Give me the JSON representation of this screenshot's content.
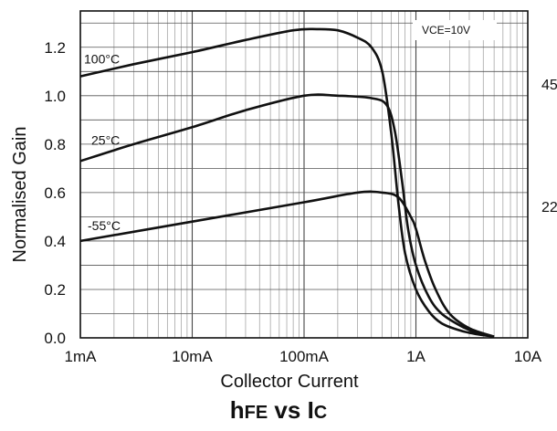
{
  "chart_data": {
    "type": "line",
    "title_main": "h",
    "title_sub": "FE",
    "title_mid": " vs I",
    "title_sub2": "C",
    "xlabel": "Collector Current",
    "ylabel": "Normalised Gain",
    "x_scale": "log",
    "xlim": [
      0.001,
      10
    ],
    "ylim": [
      0.0,
      1.35
    ],
    "x_ticks": [
      {
        "value": 0.001,
        "label": "1mA"
      },
      {
        "value": 0.01,
        "label": "10mA"
      },
      {
        "value": 0.1,
        "label": "100mA"
      },
      {
        "value": 1,
        "label": "1A"
      },
      {
        "value": 10,
        "label": "10A"
      }
    ],
    "y_ticks": [
      {
        "value": 0.0,
        "label": "0.0"
      },
      {
        "value": 0.2,
        "label": "0.2"
      },
      {
        "value": 0.4,
        "label": "0.4"
      },
      {
        "value": 0.6,
        "label": "0.6"
      },
      {
        "value": 0.8,
        "label": "0.8"
      },
      {
        "value": 1.0,
        "label": "1.0"
      },
      {
        "value": 1.2,
        "label": "1.2"
      }
    ],
    "grid": true,
    "condition": "VCE=10V",
    "margin_labels": [
      "45",
      "22"
    ],
    "series": [
      {
        "name": "100°C",
        "x": [
          0.001,
          0.003,
          0.01,
          0.03,
          0.08,
          0.13,
          0.2,
          0.3,
          0.4,
          0.5,
          0.6,
          0.7,
          0.8,
          1.0,
          1.3,
          1.7,
          2.5,
          3.5,
          5.0
        ],
        "y": [
          1.08,
          1.13,
          1.18,
          1.23,
          1.27,
          1.275,
          1.27,
          1.24,
          1.2,
          1.1,
          0.85,
          0.55,
          0.35,
          0.2,
          0.11,
          0.06,
          0.03,
          0.015,
          0.005
        ]
      },
      {
        "name": "25°C",
        "x": [
          0.001,
          0.003,
          0.01,
          0.03,
          0.1,
          0.2,
          0.4,
          0.55,
          0.65,
          0.75,
          0.85,
          1.0,
          1.3,
          1.7,
          2.5,
          3.5,
          5.0
        ],
        "y": [
          0.73,
          0.8,
          0.87,
          0.94,
          1.0,
          1.0,
          0.99,
          0.96,
          0.85,
          0.65,
          0.45,
          0.3,
          0.17,
          0.1,
          0.05,
          0.02,
          0.005
        ]
      },
      {
        "name": "-55°C",
        "x": [
          0.001,
          0.01,
          0.1,
          0.3,
          0.5,
          0.7,
          0.9,
          1.0,
          1.2,
          1.5,
          2.0,
          3.0,
          5.0
        ],
        "y": [
          0.4,
          0.48,
          0.56,
          0.6,
          0.6,
          0.58,
          0.5,
          0.45,
          0.32,
          0.2,
          0.1,
          0.04,
          0.005
        ]
      }
    ]
  }
}
